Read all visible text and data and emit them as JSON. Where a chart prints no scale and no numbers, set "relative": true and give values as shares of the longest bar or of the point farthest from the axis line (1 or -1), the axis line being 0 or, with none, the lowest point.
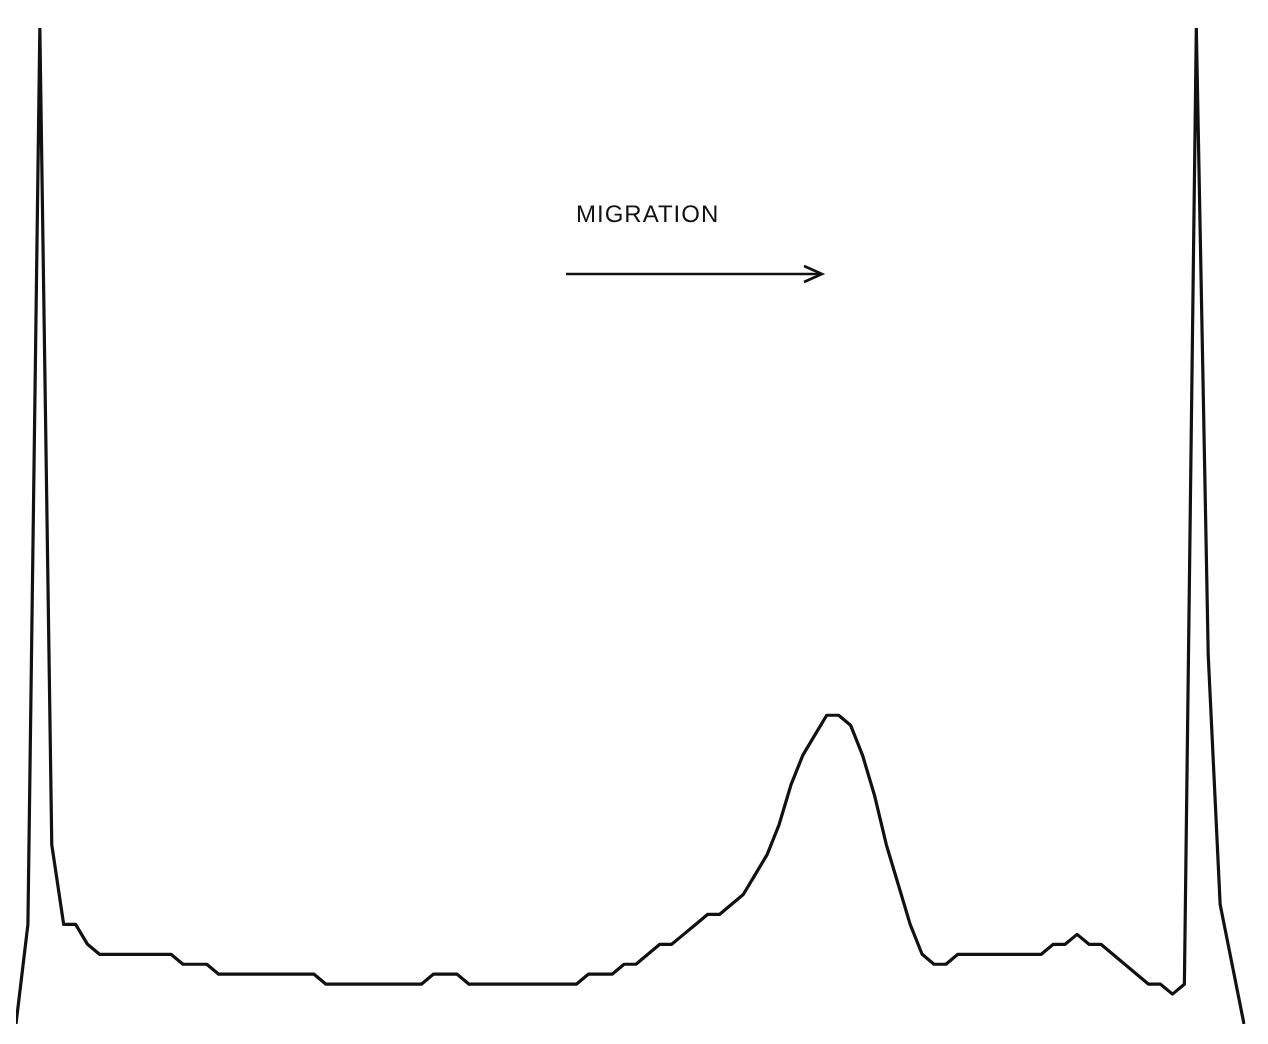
{
  "chart_data": {
    "type": "line",
    "relative": true,
    "color": "#111111",
    "legend": false,
    "marker": "none",
    "line_style": "solid",
    "annotations": [
      "MIGRATION"
    ],
    "categories": [
      null,
      null,
      null,
      null,
      null,
      null,
      null,
      null,
      null,
      null,
      null,
      null,
      null,
      null,
      null,
      null,
      null,
      null,
      null,
      null,
      null,
      null,
      null,
      null,
      null,
      null,
      null,
      null,
      null,
      null,
      null,
      null,
      null,
      null,
      null,
      null,
      null,
      null,
      null,
      null,
      null,
      null,
      null,
      null,
      null,
      null,
      null,
      null,
      null,
      null,
      null,
      null,
      null,
      null,
      null,
      null,
      null,
      null,
      null,
      null,
      null,
      null,
      null,
      null,
      null,
      null,
      null,
      null,
      null,
      null,
      null,
      null,
      null,
      null,
      null,
      null,
      null,
      null,
      null,
      null,
      null,
      null,
      null,
      null,
      null,
      null,
      null,
      null,
      null,
      null,
      null,
      null,
      null,
      null,
      null,
      null,
      null,
      null,
      null,
      null,
      null,
      null,
      null,
      null
    ],
    "values": [
      0,
      0.1,
      1,
      0.18,
      0.1,
      0.1,
      0.08,
      0.07,
      0.07,
      0.07,
      0.07,
      0.07,
      0.07,
      0.07,
      0.06,
      0.06,
      0.06,
      0.05,
      0.05,
      0.05,
      0.05,
      0.05,
      0.05,
      0.05,
      0.05,
      0.05,
      0.04,
      0.04,
      0.04,
      0.04,
      0.04,
      0.04,
      0.04,
      0.04,
      0.04,
      0.05,
      0.05,
      0.05,
      0.04,
      0.04,
      0.04,
      0.04,
      0.04,
      0.04,
      0.04,
      0.04,
      0.04,
      0.04,
      0.05,
      0.05,
      0.05,
      0.06,
      0.06,
      0.07,
      0.08,
      0.08,
      0.09,
      0.1,
      0.11,
      0.11,
      0.12,
      0.13,
      0.15,
      0.17,
      0.2,
      0.24,
      0.27,
      0.29,
      0.31,
      0.31,
      0.3,
      0.27,
      0.23,
      0.18,
      0.14,
      0.1,
      0.07,
      0.06,
      0.06,
      0.07,
      0.07,
      0.07,
      0.07,
      0.07,
      0.07,
      0.07,
      0.07,
      0.08,
      0.08,
      0.09,
      0.08,
      0.08,
      0.07,
      0.06,
      0.05,
      0.04,
      0.04,
      0.03,
      0.04,
      1,
      0.37,
      0.12,
      0.06,
      0
    ]
  }
}
